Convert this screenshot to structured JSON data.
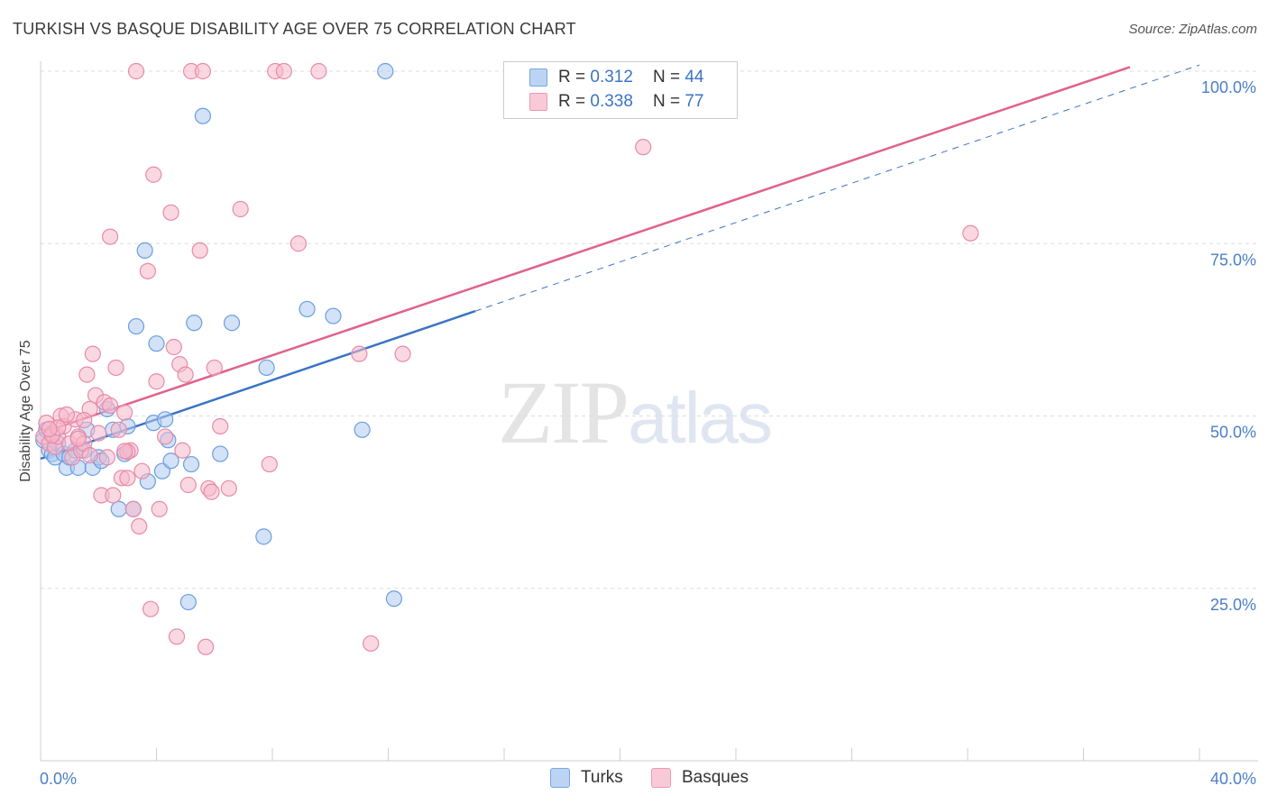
{
  "header": {
    "title": "TURKISH VS BASQUE DISABILITY AGE OVER 75 CORRELATION CHART",
    "source": "Source: ZipAtlas.com"
  },
  "watermark": {
    "zip": "ZIP",
    "atlas": "atlas"
  },
  "legend": {
    "turks": {
      "r_label": "R =",
      "r_value": "0.312",
      "n_label": "N =",
      "n_value": "44"
    },
    "basques": {
      "r_label": "R =",
      "r_value": "0.338",
      "n_label": "N =",
      "n_value": "77"
    }
  },
  "bottom_legend": {
    "turks": "Turks",
    "basques": "Basques"
  },
  "colors": {
    "turks_fill": "#aecbf0",
    "turks_stroke": "#6a9ee0",
    "turks_line": "#3a74c4",
    "basques_fill": "#f6b8cb",
    "basques_stroke": "#e88aa8",
    "basques_line": "#e0628b",
    "tick_color": "#4a7fc8",
    "grid": "#dedede"
  },
  "chart_data": {
    "type": "scatter",
    "title": "TURKISH VS BASQUE DISABILITY AGE OVER 75 CORRELATION CHART",
    "xlabel": "",
    "ylabel": "Disability Age Over 75",
    "xlim": [
      0,
      40
    ],
    "ylim": [
      0,
      100
    ],
    "x_ticks": [
      "0.0%",
      "40.0%"
    ],
    "y_ticks": [
      "25.0%",
      "50.0%",
      "75.0%",
      "100.0%"
    ],
    "legend_position": "top-center",
    "series": [
      {
        "name": "Turks",
        "points": [
          [
            0.1,
            46.5
          ],
          [
            0.2,
            48
          ],
          [
            0.3,
            45
          ],
          [
            0.4,
            44.5
          ],
          [
            0.5,
            44
          ],
          [
            0.6,
            46
          ],
          [
            0.8,
            44.5
          ],
          [
            0.9,
            42.5
          ],
          [
            1.0,
            44
          ],
          [
            1.2,
            45
          ],
          [
            1.3,
            42.5
          ],
          [
            1.5,
            45
          ],
          [
            1.6,
            48
          ],
          [
            1.8,
            42.5
          ],
          [
            2.0,
            44
          ],
          [
            2.1,
            43.5
          ],
          [
            2.3,
            51
          ],
          [
            2.5,
            48
          ],
          [
            2.7,
            36.5
          ],
          [
            2.9,
            44.5
          ],
          [
            3.0,
            48.5
          ],
          [
            3.2,
            36.5
          ],
          [
            3.3,
            63
          ],
          [
            3.6,
            74
          ],
          [
            3.7,
            40.5
          ],
          [
            3.9,
            49
          ],
          [
            4.0,
            60.5
          ],
          [
            4.2,
            42
          ],
          [
            4.3,
            49.5
          ],
          [
            4.4,
            46.5
          ],
          [
            4.5,
            43.5
          ],
          [
            5.1,
            23
          ],
          [
            5.2,
            43
          ],
          [
            5.3,
            63.5
          ],
          [
            5.6,
            93.5
          ],
          [
            6.2,
            44.5
          ],
          [
            6.6,
            63.5
          ],
          [
            7.7,
            32.5
          ],
          [
            7.8,
            57
          ],
          [
            9.2,
            65.5
          ],
          [
            10.1,
            64.5
          ],
          [
            11.1,
            48
          ],
          [
            11.9,
            100
          ],
          [
            12.2,
            23.5
          ]
        ]
      },
      {
        "name": "Basques",
        "points": [
          [
            0.1,
            47
          ],
          [
            0.2,
            49
          ],
          [
            0.3,
            46
          ],
          [
            0.4,
            47.5
          ],
          [
            0.5,
            45.5
          ],
          [
            0.6,
            47
          ],
          [
            0.7,
            50
          ],
          [
            0.8,
            48.5
          ],
          [
            1.0,
            46
          ],
          [
            1.1,
            44
          ],
          [
            1.2,
            49.5
          ],
          [
            1.3,
            47
          ],
          [
            1.4,
            45
          ],
          [
            1.5,
            46
          ],
          [
            1.6,
            56
          ],
          [
            1.7,
            51
          ],
          [
            1.8,
            59
          ],
          [
            1.9,
            53
          ],
          [
            2.0,
            47.5
          ],
          [
            2.1,
            38.5
          ],
          [
            2.2,
            52
          ],
          [
            2.3,
            44
          ],
          [
            2.4,
            76
          ],
          [
            2.5,
            38.5
          ],
          [
            2.6,
            57
          ],
          [
            2.7,
            48
          ],
          [
            2.8,
            41
          ],
          [
            2.9,
            50.5
          ],
          [
            3.0,
            41
          ],
          [
            3.1,
            45
          ],
          [
            3.2,
            36.5
          ],
          [
            3.3,
            100
          ],
          [
            3.4,
            34
          ],
          [
            3.5,
            42
          ],
          [
            3.7,
            71
          ],
          [
            3.8,
            22
          ],
          [
            3.9,
            85
          ],
          [
            4.0,
            55
          ],
          [
            4.1,
            36.5
          ],
          [
            4.3,
            47
          ],
          [
            4.5,
            79.5
          ],
          [
            4.6,
            60
          ],
          [
            4.7,
            18
          ],
          [
            4.8,
            57.5
          ],
          [
            4.9,
            45
          ],
          [
            5.0,
            56
          ],
          [
            5.1,
            40
          ],
          [
            5.2,
            100
          ],
          [
            5.5,
            74
          ],
          [
            5.6,
            100
          ],
          [
            5.7,
            16.5
          ],
          [
            5.8,
            39.5
          ],
          [
            5.9,
            39
          ],
          [
            6.0,
            57
          ],
          [
            6.2,
            48.5
          ],
          [
            6.5,
            39.5
          ],
          [
            6.9,
            80
          ],
          [
            7.9,
            43
          ],
          [
            8.1,
            100
          ],
          [
            8.4,
            100
          ],
          [
            8.9,
            75
          ],
          [
            9.6,
            100
          ],
          [
            11.0,
            59
          ],
          [
            11.4,
            17
          ],
          [
            12.5,
            59
          ],
          [
            20.8,
            89
          ],
          [
            32.1,
            76.5
          ],
          [
            0.4,
            47.2
          ],
          [
            0.6,
            48.3
          ],
          [
            1.5,
            49.4
          ],
          [
            2.4,
            51.5
          ],
          [
            3.0,
            44.8
          ],
          [
            0.9,
            50.2
          ],
          [
            1.7,
            44.3
          ],
          [
            2.9,
            44.9
          ],
          [
            0.3,
            48.1
          ],
          [
            1.3,
            46.7
          ]
        ]
      }
    ],
    "trendlines": [
      {
        "series": "Turks",
        "x": [
          0,
          15.0
        ],
        "y": [
          43.8,
          65.2
        ],
        "style": "solid"
      },
      {
        "series": "Turks",
        "x": [
          15.0,
          40
        ],
        "y": [
          65.2,
          100.9
        ],
        "style": "dashed"
      },
      {
        "series": "Basques",
        "x": [
          0,
          37.6
        ],
        "y": [
          47.5,
          100.6
        ],
        "style": "solid"
      }
    ]
  }
}
